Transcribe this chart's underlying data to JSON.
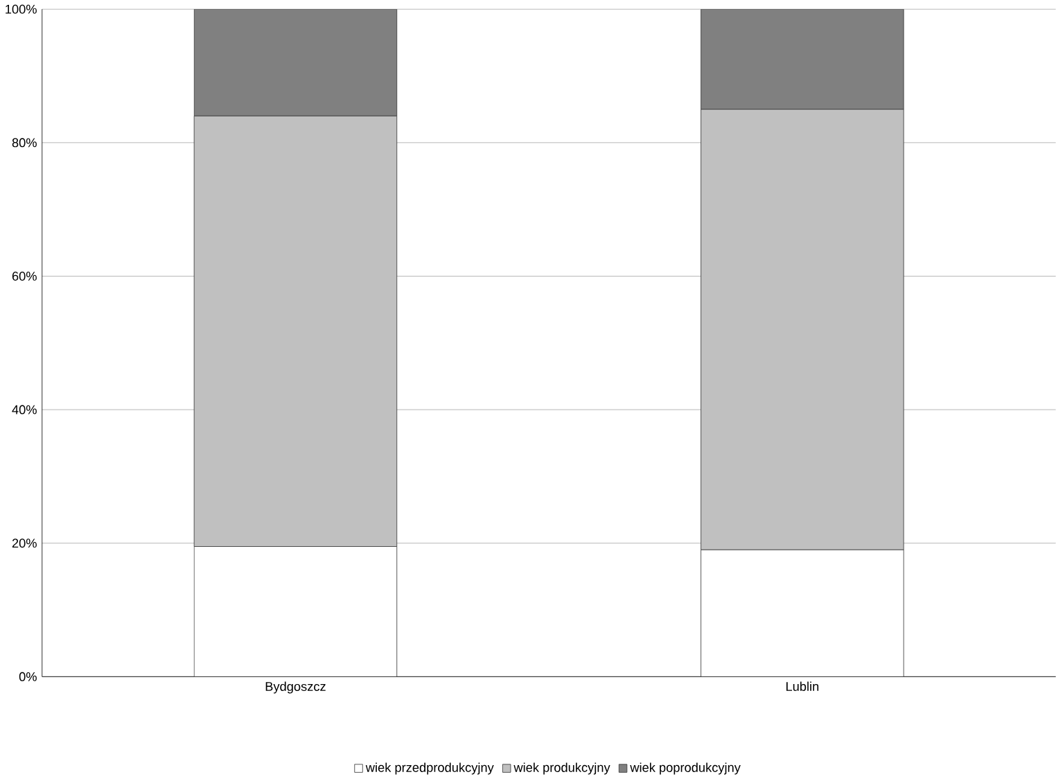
{
  "chart_data": {
    "type": "bar",
    "stacked": true,
    "categories": [
      "Bydgoszcz",
      "Lublin"
    ],
    "series": [
      {
        "name": "wiek przedprodukcyjny",
        "color": "#ffffff",
        "values": [
          19.5,
          19
        ]
      },
      {
        "name": "wiek produkcyjny",
        "color": "#c0c0c0",
        "values": [
          64.5,
          66
        ]
      },
      {
        "name": "wiek poprodukcyjny",
        "color": "#808080",
        "values": [
          16,
          15
        ]
      }
    ],
    "ylim": [
      0,
      100
    ],
    "yticks": [
      {
        "value": 0,
        "label": "0%"
      },
      {
        "value": 20,
        "label": "20%"
      },
      {
        "value": 40,
        "label": "40%"
      },
      {
        "value": 60,
        "label": "60%"
      },
      {
        "value": 80,
        "label": "80%"
      },
      {
        "value": 100,
        "label": "100%"
      }
    ],
    "grid": "y",
    "legend": "bottom"
  }
}
